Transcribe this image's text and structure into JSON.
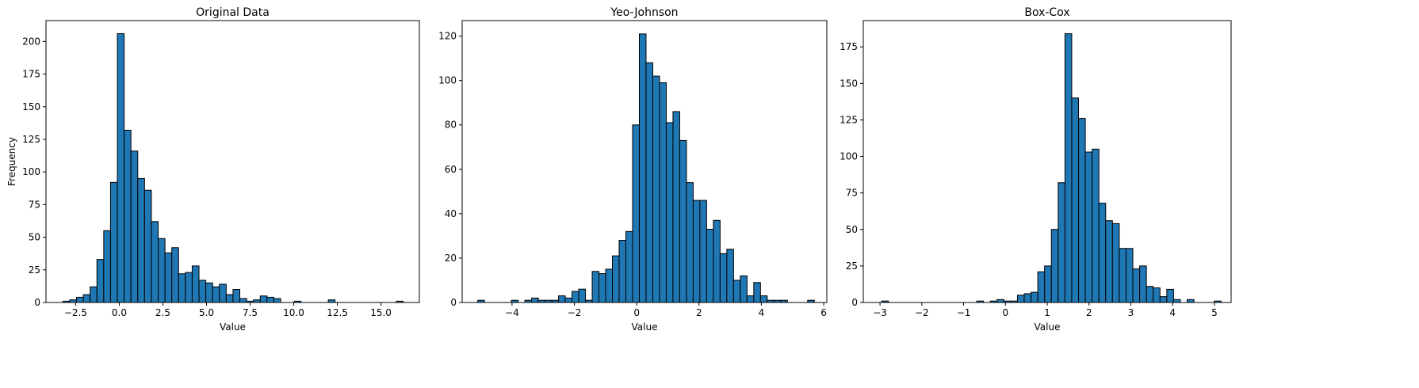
{
  "colors": {
    "bar_fill": "#1f77b4",
    "bar_edge": "#000000",
    "axis": "#000000",
    "background": "#ffffff"
  },
  "chart_data": [
    {
      "type": "bar",
      "title": "Original Data",
      "xlabel": "Value",
      "ylabel": "Frequency",
      "xlim": [
        -4.2,
        17.2
      ],
      "ylim": [
        0,
        216
      ],
      "xticks": [
        -2.5,
        0.0,
        2.5,
        5.0,
        7.5,
        10.0,
        12.5,
        15.0
      ],
      "xtick_labels": [
        "−2.5",
        "0.0",
        "2.5",
        "5.0",
        "7.5",
        "10.0",
        "12.5",
        "15.0"
      ],
      "yticks": [
        0,
        25,
        50,
        75,
        100,
        125,
        150,
        175,
        200
      ],
      "ytick_labels": [
        "0",
        "25",
        "50",
        "75",
        "100",
        "125",
        "150",
        "175",
        "200"
      ],
      "bin_start": -3.23,
      "bin_width": 0.39,
      "values": [
        1,
        2,
        4,
        6,
        12,
        33,
        55,
        92,
        206,
        132,
        116,
        95,
        86,
        62,
        49,
        38,
        42,
        22,
        23,
        28,
        17,
        15,
        12,
        14,
        6,
        10,
        3,
        1,
        2,
        5,
        4,
        3,
        0,
        0,
        1,
        0,
        0,
        0,
        0,
        2,
        0,
        0,
        0,
        0,
        0,
        0,
        0,
        0,
        0,
        1
      ]
    },
    {
      "type": "bar",
      "title": "Yeo-Johnson",
      "xlabel": "Value",
      "ylabel": "",
      "xlim": [
        -5.6,
        6.1
      ],
      "ylim": [
        0,
        127
      ],
      "xticks": [
        -4,
        -2,
        0,
        2,
        4,
        6
      ],
      "xtick_labels": [
        "−4",
        "−2",
        "0",
        "2",
        "4",
        "6"
      ],
      "yticks": [
        0,
        20,
        40,
        60,
        80,
        100,
        120
      ],
      "yticks_labels_note": "",
      "ytick_labels": [
        "0",
        "20",
        "40",
        "60",
        "80",
        "100",
        "120"
      ],
      "bin_start": -5.1,
      "bin_width": 0.216,
      "values": [
        1,
        0,
        0,
        0,
        0,
        1,
        0,
        1,
        2,
        1,
        1,
        1,
        3,
        2,
        5,
        6,
        1,
        14,
        13,
        15,
        21,
        28,
        32,
        80,
        121,
        108,
        102,
        99,
        81,
        86,
        73,
        54,
        46,
        46,
        33,
        37,
        22,
        24,
        10,
        12,
        3,
        9,
        3,
        1,
        1,
        1,
        0,
        0,
        0,
        1
      ]
    },
    {
      "type": "bar",
      "title": "Box-Cox",
      "xlabel": "Value",
      "ylabel": "",
      "xlim": [
        -3.4,
        5.4
      ],
      "ylim": [
        0,
        193
      ],
      "xticks": [
        -3,
        -2,
        -1,
        0,
        1,
        2,
        3,
        4,
        5
      ],
      "xtick_labels": [
        "−3",
        "−2",
        "−1",
        "0",
        "1",
        "2",
        "3",
        "4",
        "5"
      ],
      "yticks": [
        0,
        25,
        50,
        75,
        100,
        125,
        150,
        175
      ],
      "ytick_labels": [
        "0",
        "25",
        "50",
        "75",
        "100",
        "125",
        "150",
        "175"
      ],
      "bin_start": -2.96,
      "bin_width": 0.1624,
      "values": [
        1,
        0,
        0,
        0,
        0,
        0,
        0,
        0,
        0,
        0,
        0,
        0,
        0,
        0,
        1,
        0,
        1,
        2,
        1,
        1,
        5,
        6,
        7,
        21,
        25,
        50,
        82,
        184,
        140,
        126,
        103,
        105,
        68,
        56,
        54,
        37,
        37,
        23,
        25,
        11,
        10,
        4,
        9,
        2,
        0,
        2,
        0,
        0,
        0,
        1
      ]
    }
  ]
}
